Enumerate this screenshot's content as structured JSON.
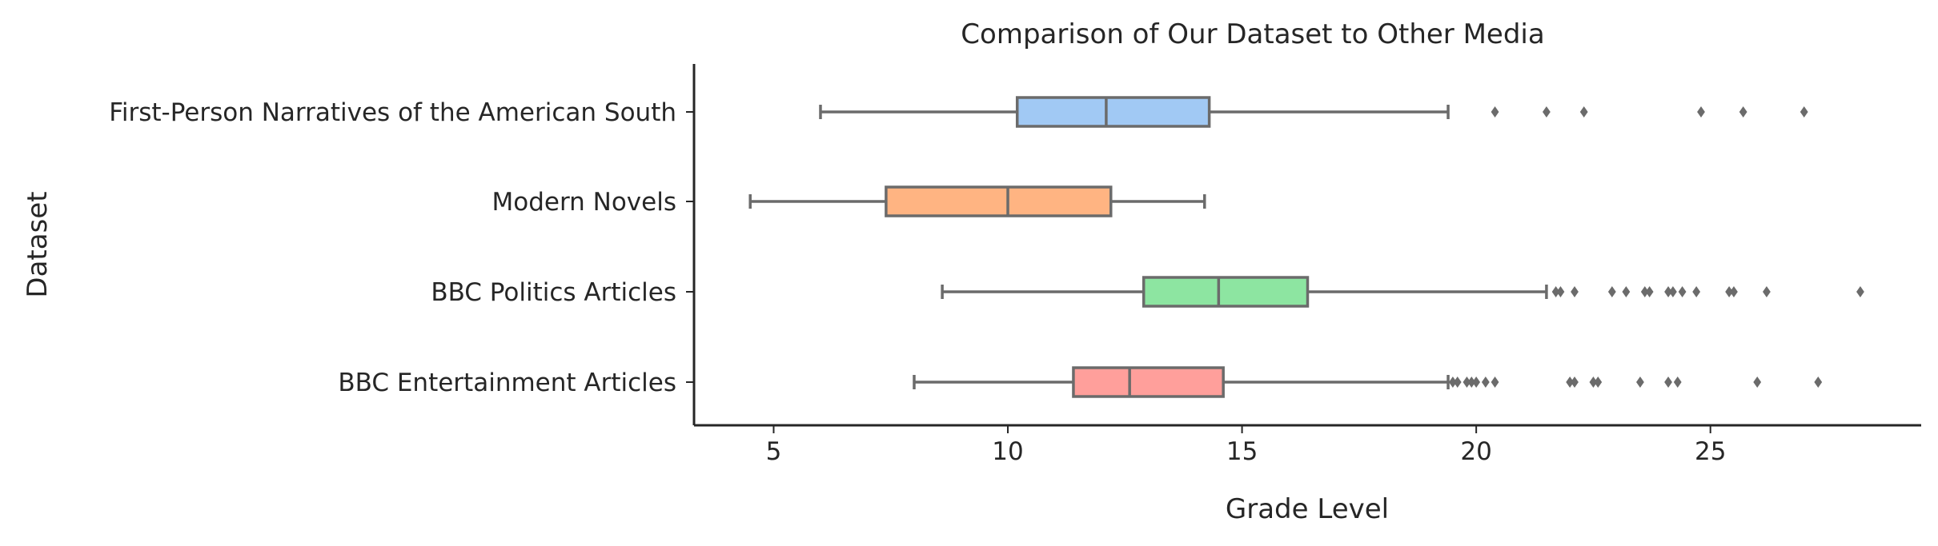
{
  "chart_data": {
    "type": "box",
    "title": "Comparison of Our Dataset to Other Media",
    "xlabel": "Grade Level",
    "ylabel": "Dataset",
    "xlim": [
      3.3,
      29.5
    ],
    "xticks": [
      5,
      10,
      15,
      20,
      25
    ],
    "orientation": "horizontal",
    "series": [
      {
        "name": "First-Person Narratives of the American South",
        "color": "#a1c9f4",
        "whisker_low": 6.0,
        "q1": 10.2,
        "median": 12.1,
        "q3": 14.3,
        "whisker_high": 19.4,
        "outliers": [
          20.4,
          21.5,
          22.3,
          24.8,
          25.7,
          27.0
        ]
      },
      {
        "name": "Modern Novels",
        "color": "#ffb482",
        "whisker_low": 4.5,
        "q1": 7.4,
        "median": 10.0,
        "q3": 12.2,
        "whisker_high": 14.2,
        "outliers": []
      },
      {
        "name": "BBC Politics Articles",
        "color": "#8de5a1",
        "whisker_low": 8.6,
        "q1": 12.9,
        "median": 14.5,
        "q3": 16.4,
        "whisker_high": 21.5,
        "outliers": [
          21.7,
          21.8,
          22.1,
          22.9,
          23.2,
          23.6,
          23.7,
          24.1,
          24.2,
          24.4,
          24.7,
          25.4,
          25.5,
          26.2,
          28.2
        ]
      },
      {
        "name": "BBC Entertainment Articles",
        "color": "#ff9f9b",
        "whisker_low": 8.0,
        "q1": 11.4,
        "median": 12.6,
        "q3": 14.6,
        "whisker_high": 19.4,
        "outliers": [
          19.5,
          19.6,
          19.8,
          19.9,
          20.0,
          20.2,
          20.4,
          22.0,
          22.1,
          22.5,
          22.6,
          23.5,
          24.1,
          24.3,
          26.0,
          27.3
        ]
      }
    ]
  }
}
